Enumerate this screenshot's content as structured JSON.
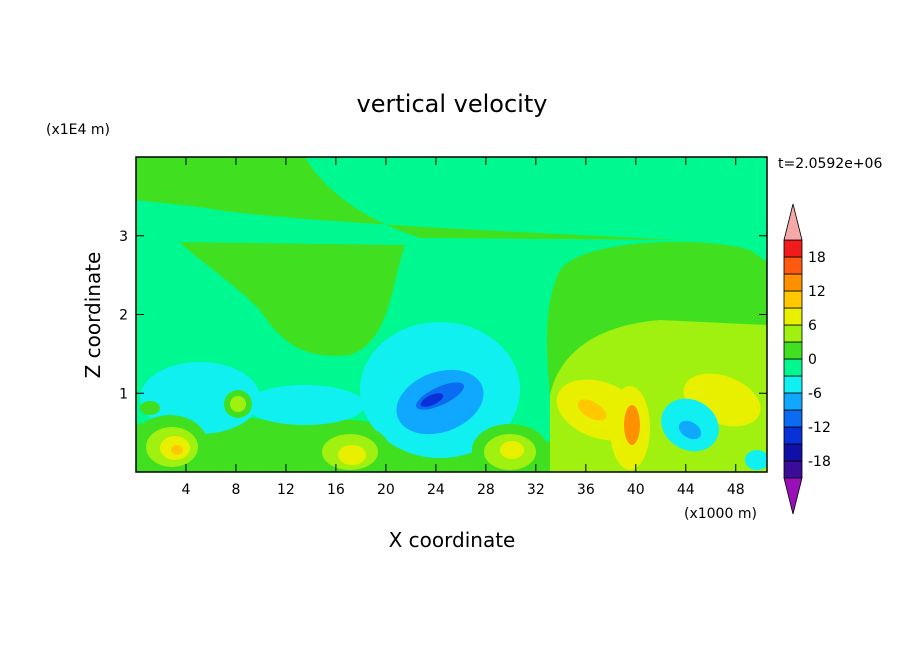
{
  "chart_data": {
    "type": "contour",
    "title": "vertical velocity",
    "ylabel_units": "(x1E4 m)",
    "ylabel": "Z coordinate",
    "xlabel": "X coordinate",
    "xlabel_units": "(x1000 m)",
    "time_label": "t=2.0592e+06",
    "xlim": [
      0,
      50.5
    ],
    "xticks": [
      4,
      8,
      12,
      16,
      20,
      24,
      28,
      32,
      36,
      40,
      44,
      48
    ],
    "ylim": [
      0,
      4
    ],
    "yticks": [
      1,
      2,
      3
    ],
    "levels": [
      -21,
      -18,
      -15,
      -12,
      -9,
      -6,
      -3,
      0,
      3,
      6,
      9,
      12,
      15,
      18,
      21
    ],
    "colors": [
      "#9a10b8",
      "#3a0c98",
      "#1010a8",
      "#0a30d8",
      "#0a6cf0",
      "#10a8ff",
      "#10f0f0",
      "#00f890",
      "#40e020",
      "#a0f010",
      "#e8f000",
      "#ffc800",
      "#ff9000",
      "#ff5a10",
      "#f01c1c",
      "#f4a8a8"
    ],
    "colorbar_ticks": [
      18,
      12,
      6,
      0,
      -6,
      -12,
      -18
    ]
  }
}
